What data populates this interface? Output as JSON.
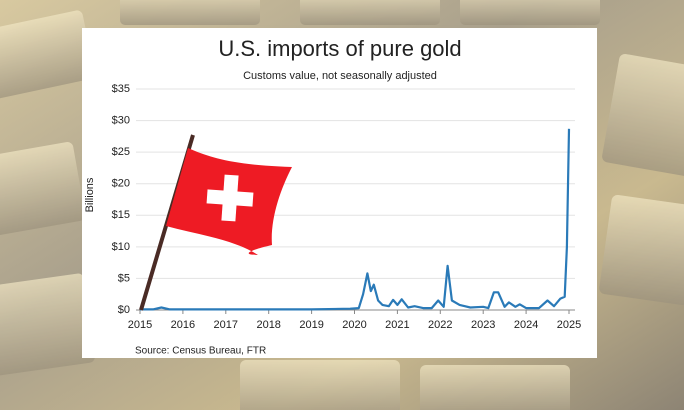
{
  "chart_data": {
    "type": "line",
    "title": "U.S. imports of pure gold",
    "subtitle": "Customs value, not seasonally adjusted",
    "y_label": "Billions",
    "source": "Source: Census Bureau, FTR",
    "xlim": [
      2015,
      2025
    ],
    "xticks": [
      2015,
      2016,
      2017,
      2018,
      2019,
      2020,
      2021,
      2022,
      2023,
      2024,
      2025
    ],
    "ylim": [
      0,
      35
    ],
    "yticks": [
      {
        "value": 0,
        "label": "$0"
      },
      {
        "value": 5,
        "label": "$5"
      },
      {
        "value": 10,
        "label": "$10"
      },
      {
        "value": 15,
        "label": "$15"
      },
      {
        "value": 20,
        "label": "$20"
      },
      {
        "value": 25,
        "label": "$25"
      },
      {
        "value": 30,
        "label": "$30"
      },
      {
        "value": 35,
        "label": "$35"
      }
    ],
    "grid": true,
    "series": [
      {
        "color": "#2a7ab8",
        "x": [
          2015,
          2015.3,
          2015.5,
          2015.7,
          2016,
          2016.5,
          2017,
          2018,
          2019,
          2019.9,
          2020.1,
          2020.2,
          2020.3,
          2020.38,
          2020.45,
          2020.55,
          2020.65,
          2020.8,
          2020.9,
          2021.0,
          2021.1,
          2021.25,
          2021.4,
          2021.6,
          2021.8,
          2021.95,
          2022.08,
          2022.17,
          2022.27,
          2022.45,
          2022.7,
          2023.0,
          2023.12,
          2023.25,
          2023.35,
          2023.5,
          2023.6,
          2023.75,
          2023.85,
          2024.0,
          2024.3,
          2024.5,
          2024.65,
          2024.8,
          2024.9,
          2024.95,
          2025.0
        ],
        "values": [
          0.1,
          0.1,
          0.4,
          0.1,
          0.1,
          0.1,
          0.1,
          0.1,
          0.1,
          0.2,
          0.3,
          2.5,
          5.8,
          3.0,
          4.0,
          1.5,
          0.8,
          0.6,
          1.6,
          0.8,
          1.7,
          0.4,
          0.6,
          0.3,
          0.3,
          1.5,
          0.5,
          7.0,
          1.5,
          0.8,
          0.4,
          0.5,
          0.3,
          2.8,
          2.8,
          0.5,
          1.2,
          0.5,
          0.9,
          0.3,
          0.3,
          1.5,
          0.6,
          1.8,
          2.1,
          10.0,
          28.7
        ]
      }
    ]
  }
}
